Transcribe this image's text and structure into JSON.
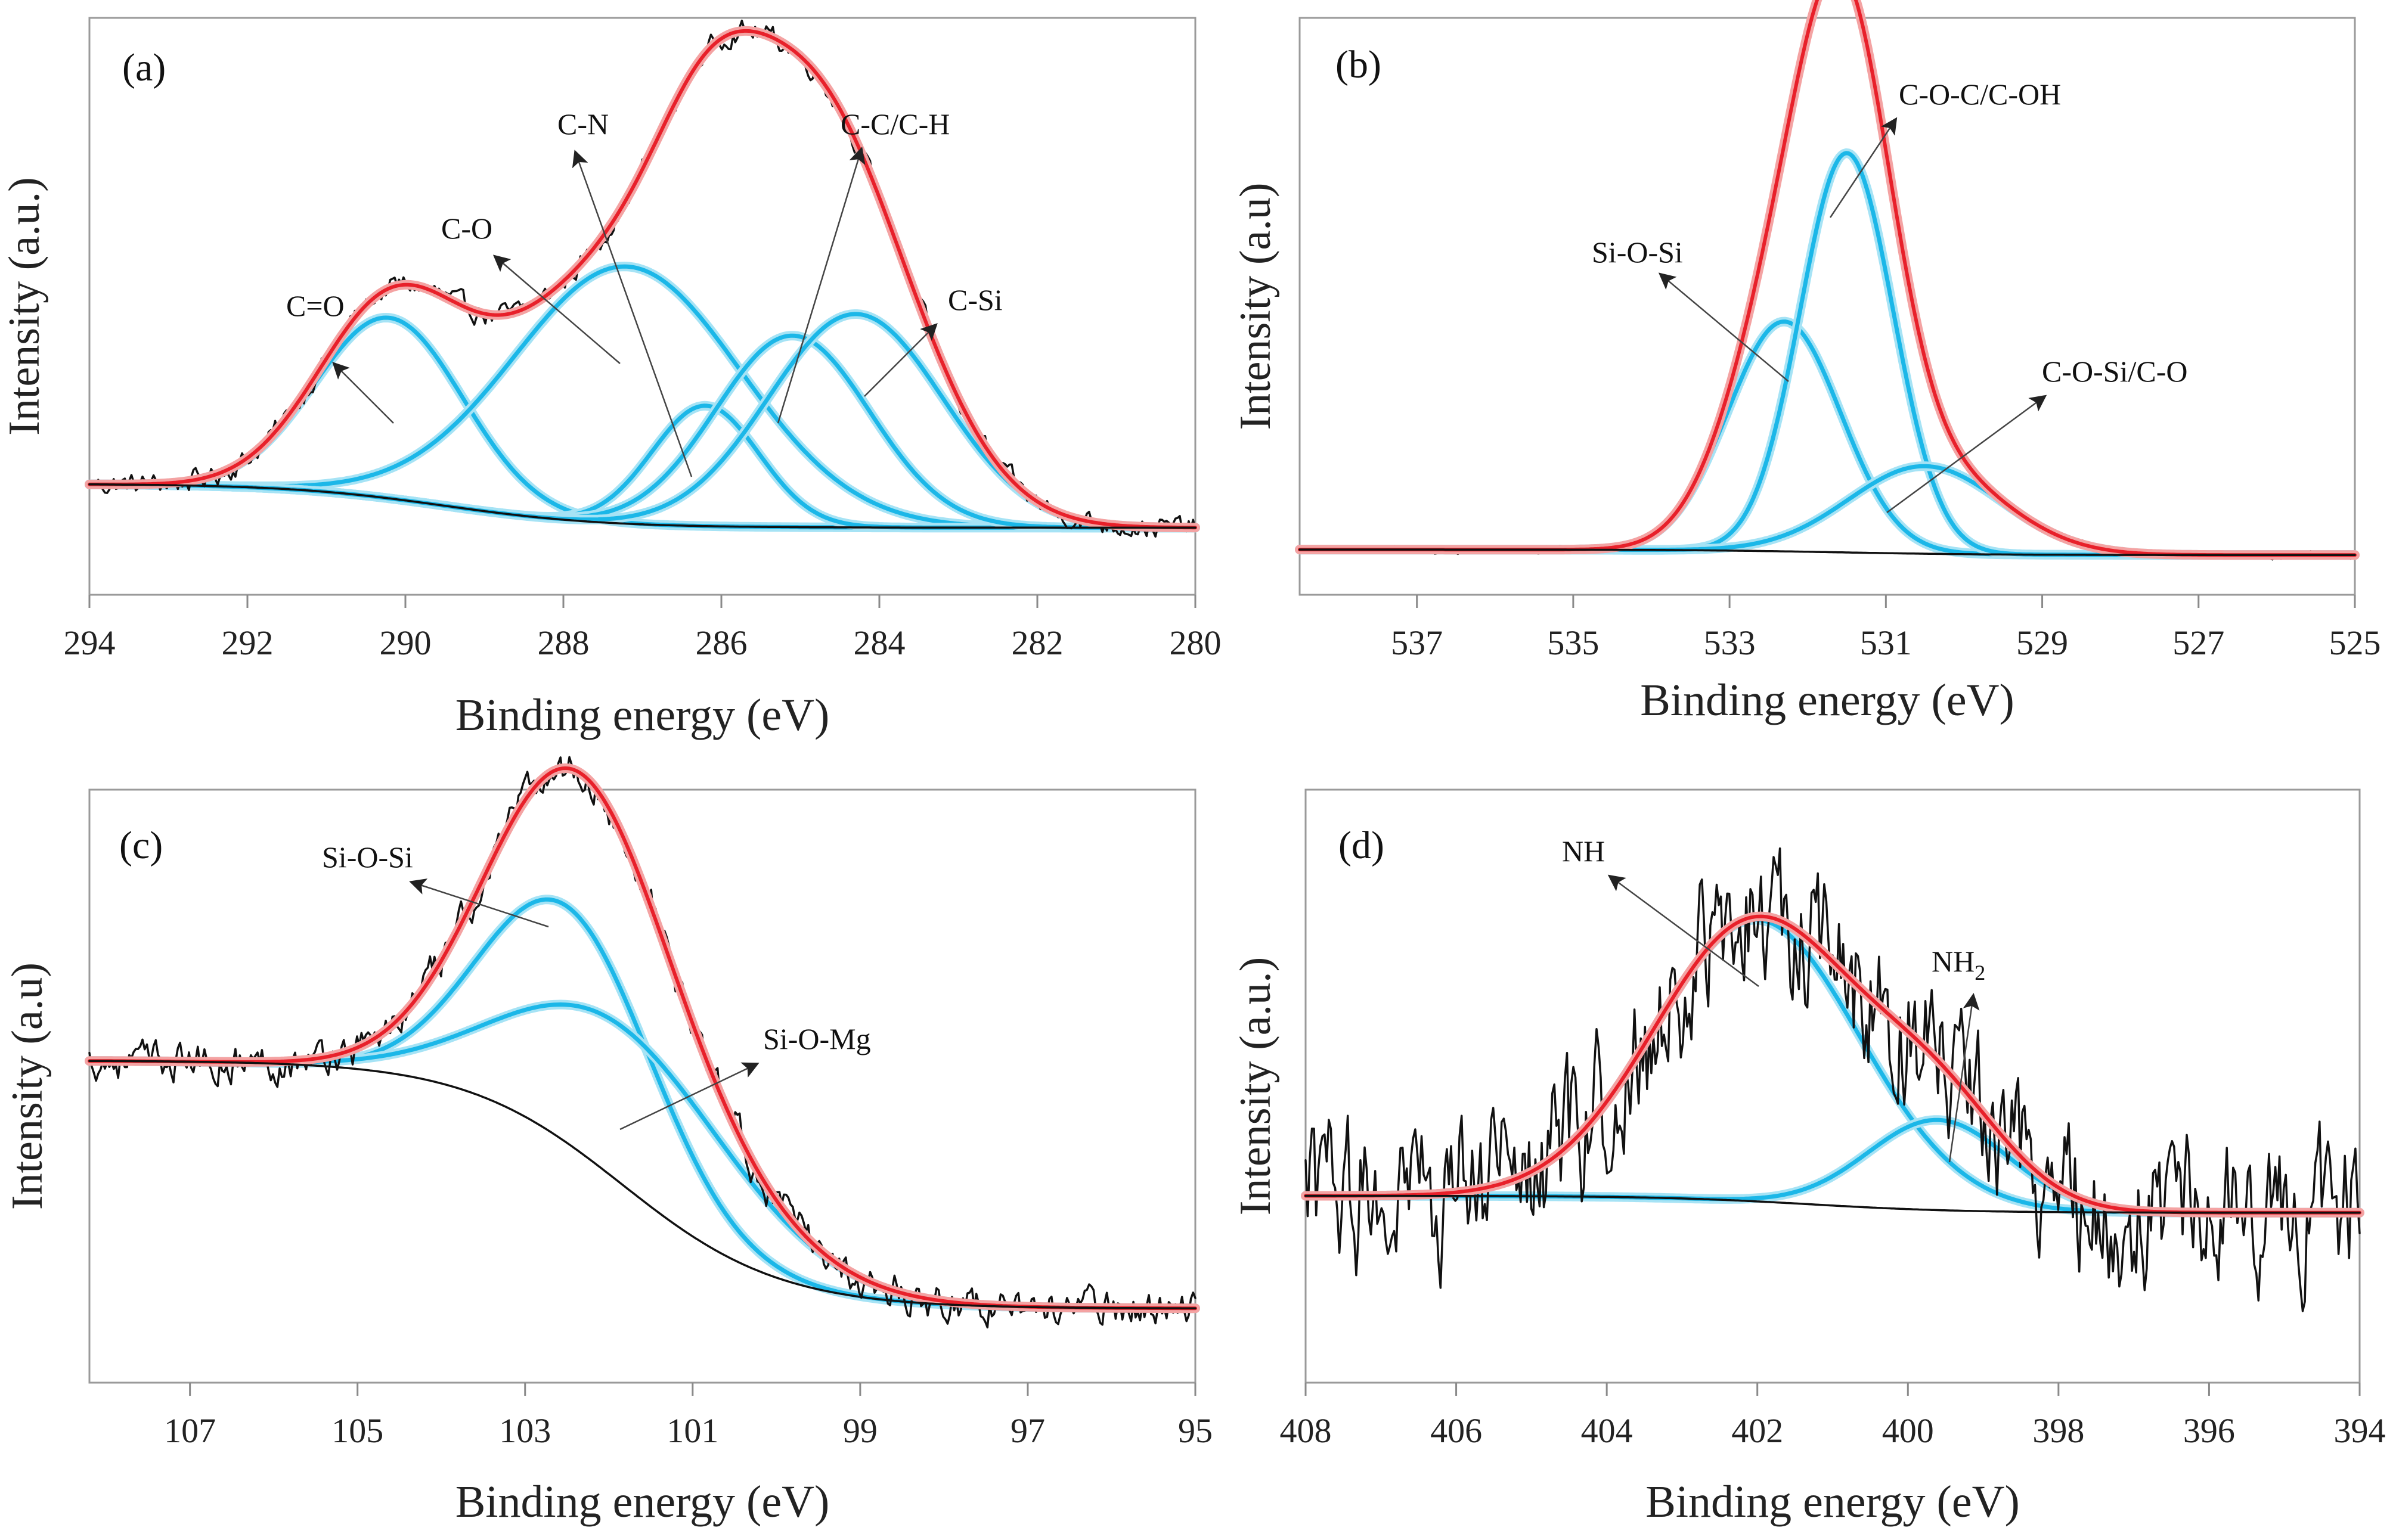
{
  "chart_data": [
    {
      "id": "a",
      "type": "line",
      "panel_label": "(a)",
      "xlabel": "Binding energy (eV)",
      "ylabel": "Intensity (a.u.)",
      "xlim": [
        294,
        280
      ],
      "xticks": [
        294,
        292,
        290,
        288,
        286,
        284,
        282,
        280
      ],
      "ylim": [
        0,
        1
      ],
      "background": [
        0.17,
        0.17,
        0.09
      ],
      "noise": 0.012,
      "peaks": [
        {
          "name": "C=O",
          "center": 290.2,
          "height": 0.33,
          "fwhm": 2.2
        },
        {
          "name": "C-O",
          "center": 287.2,
          "height": 0.47,
          "fwhm": 3.4
        },
        {
          "name": "C-N",
          "center": 286.2,
          "height": 0.22,
          "fwhm": 1.6
        },
        {
          "name": "C-C/C-H",
          "center": 285.1,
          "height": 0.35,
          "fwhm": 2.3
        },
        {
          "name": "C-Si",
          "center": 284.3,
          "height": 0.39,
          "fwhm": 2.6
        }
      ],
      "annotations": [
        {
          "text": "C=O",
          "value": 290.2
        },
        {
          "text": "C-O",
          "value": 287.2
        },
        {
          "text": "C-N",
          "value": 286.2
        },
        {
          "text": "C-C/C-H",
          "value": 285.1
        },
        {
          "text": "C-Si",
          "value": 284.3
        }
      ]
    },
    {
      "id": "b",
      "type": "line",
      "panel_label": "(b)",
      "xlabel": "Binding energy (eV)",
      "ylabel": "Intensity (a.u)",
      "xlim": [
        538.5,
        525
      ],
      "xticks": [
        537,
        535,
        533,
        531,
        529,
        527,
        525
      ],
      "ylim": [
        0,
        1
      ],
      "background": [
        0.05,
        0.05,
        0.04
      ],
      "noise": 0.004,
      "peaks": [
        {
          "name": "Si-O-Si",
          "center": 532.3,
          "height": 0.42,
          "fwhm": 1.7
        },
        {
          "name": "C-O-C/C-OH",
          "center": 531.5,
          "height": 0.73,
          "fwhm": 1.4
        },
        {
          "name": "C-O-Si/C-O",
          "center": 530.5,
          "height": 0.16,
          "fwhm": 2.3
        }
      ],
      "annotations": [
        {
          "text": "Si-O-Si",
          "value": 532.3
        },
        {
          "text": "C-O-C/C-OH",
          "value": 531.5
        },
        {
          "text": "C-O-Si/C-O",
          "value": 530.5
        }
      ]
    },
    {
      "id": "c",
      "type": "line",
      "panel_label": "(c)",
      "xlabel": "Binding energy (eV)",
      "ylabel": "Intensity (a.u)",
      "xlim": [
        108.2,
        95
      ],
      "xticks": [
        107,
        105,
        103,
        101,
        99,
        97,
        95
      ],
      "ylim": [
        0,
        1
      ],
      "background": [
        0.54,
        0.45,
        0.1
      ],
      "noise": 0.02,
      "peaks": [
        {
          "name": "Si-O-Si",
          "center": 102.5,
          "height": 0.42,
          "fwhm": 2.4
        },
        {
          "name": "Si-O-Mg",
          "center": 101.8,
          "height": 0.28,
          "fwhm": 3.2
        }
      ],
      "annotations": [
        {
          "text": "Si-O-Si",
          "value": 102.5
        },
        {
          "text": "Si-O-Mg",
          "value": 101.8
        }
      ]
    },
    {
      "id": "d",
      "type": "line",
      "panel_label": "(d)",
      "xlabel": "Binding energy (eV)",
      "ylabel": "Intensity (a.u.)",
      "xlim": [
        408,
        394
      ],
      "xticks": [
        408,
        406,
        404,
        402,
        400,
        398,
        396,
        394
      ],
      "ylim": [
        0,
        1
      ],
      "background": [
        0.3,
        0.29,
        0.27
      ],
      "noise": 0.08,
      "peaks": [
        {
          "name": "NH",
          "center": 402.0,
          "height": 0.5,
          "fwhm": 3.2
        },
        {
          "name": "NH2",
          "center": 399.6,
          "height": 0.16,
          "fwhm": 2.2
        }
      ],
      "annotations": [
        {
          "text": "NH",
          "value": 402.0
        },
        {
          "text": "NH2",
          "value": 399.6
        }
      ]
    }
  ],
  "style": {
    "raw_color": "#111111",
    "envelope_color": "#e8202a",
    "envelope_halo": "#f4a3a3",
    "component_color": "#1bb7e8",
    "component_halo": "#a6e3f5",
    "background_color": "#111111"
  }
}
